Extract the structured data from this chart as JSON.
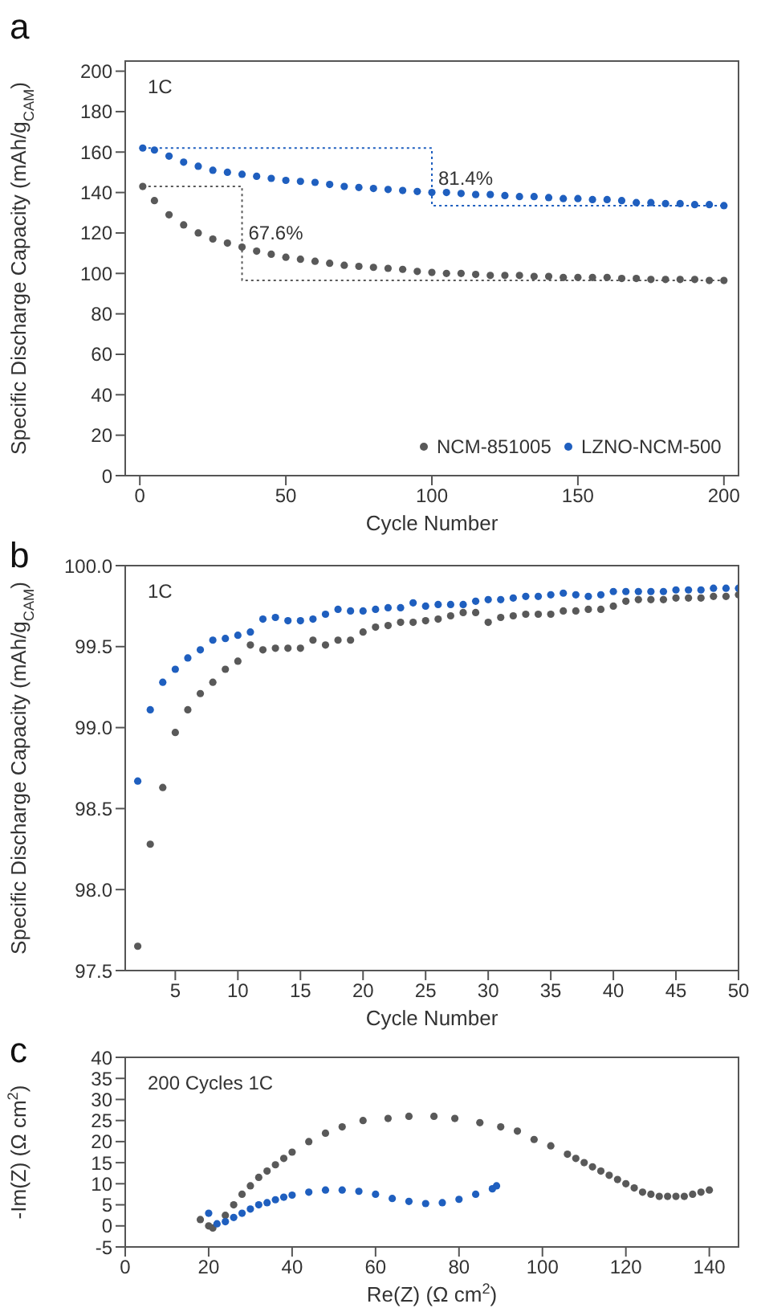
{
  "chart_data": [
    {
      "type": "scatter",
      "title": "a",
      "xlabel": "Cycle Number",
      "ylabel": "Specific Discharge Capacity (mAh/g$_{CAM}$)",
      "xlim": [
        -5,
        205
      ],
      "ylim": [
        0,
        205
      ],
      "xticks": [
        0,
        50,
        100,
        150,
        200
      ],
      "yticks": [
        0,
        20,
        40,
        60,
        80,
        100,
        120,
        140,
        160,
        180,
        200
      ],
      "marker": "circle",
      "legend": "bottom right",
      "annotations": [
        "1C",
        {
          "text": "67.6%",
          "x": 35,
          "y": 120
        },
        {
          "text": "81.4%",
          "x": 100,
          "y": 147
        }
      ],
      "series": [
        {
          "name": "NCM-851005",
          "color": "#595959",
          "x": [
            1,
            5,
            10,
            15,
            20,
            25,
            30,
            35,
            40,
            45,
            50,
            55,
            60,
            65,
            70,
            75,
            80,
            85,
            90,
            95,
            100,
            105,
            110,
            115,
            120,
            125,
            130,
            135,
            140,
            145,
            150,
            155,
            160,
            165,
            170,
            175,
            180,
            185,
            190,
            195,
            200
          ],
          "values": [
            143,
            136,
            129,
            124,
            120,
            117,
            115,
            113,
            111,
            109.5,
            108,
            107,
            106,
            105,
            104,
            103.5,
            103,
            102.5,
            102,
            101,
            100.5,
            100,
            100,
            99.5,
            99,
            99,
            99,
            98.5,
            98.5,
            98,
            98,
            98,
            98,
            97.5,
            97.5,
            97,
            97,
            97,
            97,
            96.5,
            96.5
          ]
        },
        {
          "name": "LZNO-NCM-500",
          "color": "#1f5fbf",
          "x": [
            1,
            5,
            10,
            15,
            20,
            25,
            30,
            35,
            40,
            45,
            50,
            55,
            60,
            65,
            70,
            75,
            80,
            85,
            90,
            95,
            100,
            105,
            110,
            115,
            120,
            125,
            130,
            135,
            140,
            145,
            150,
            155,
            160,
            165,
            170,
            175,
            180,
            185,
            190,
            195,
            200
          ],
          "values": [
            162,
            161,
            158,
            155,
            153,
            151,
            150,
            149,
            148,
            147,
            146,
            145.5,
            145,
            144,
            143,
            142.5,
            142,
            141.5,
            141,
            140.5,
            140,
            140,
            139.5,
            139,
            139,
            138.5,
            138,
            138,
            137.5,
            137,
            137,
            136.5,
            136.5,
            136,
            135,
            135,
            134.5,
            134.5,
            134,
            134,
            133.5
          ]
        },
        {
          "type": "line",
          "color": "#595959",
          "line_style": "dotted",
          "marker": "none",
          "x": [
            1,
            35,
            35,
            200
          ],
          "values": [
            143,
            143,
            96.5,
            96.5
          ]
        },
        {
          "type": "line",
          "color": "#1f5fbf",
          "line_style": "dotted",
          "marker": "none",
          "x": [
            1,
            100,
            100,
            200
          ],
          "values": [
            162,
            162,
            133.5,
            133.5
          ]
        }
      ]
    },
    {
      "type": "scatter",
      "title": "b",
      "xlabel": "Cycle Number",
      "ylabel": "Specific Discharge Capacity (mAh/g$_{CAM}$)",
      "xlim": [
        1,
        50
      ],
      "ylim": [
        97.5,
        100
      ],
      "xticks": [
        5,
        10,
        15,
        20,
        25,
        30,
        35,
        40,
        45,
        50
      ],
      "yticks": [
        97.5,
        {
          "value": 98,
          "label": "98.0"
        },
        98.5,
        {
          "value": 99,
          "label": "99.0"
        },
        99.5,
        {
          "value": 100,
          "label": "100.0"
        }
      ],
      "marker": "circle",
      "annotations": [
        "1C"
      ],
      "series": [
        {
          "color": "#595959",
          "x": [
            2,
            3,
            4,
            5,
            6,
            7,
            8,
            9,
            10,
            11,
            12,
            13,
            14,
            15,
            16,
            17,
            18,
            19,
            20,
            21,
            22,
            23,
            24,
            25,
            26,
            27,
            28,
            29,
            30,
            31,
            32,
            33,
            34,
            35,
            36,
            37,
            38,
            39,
            40,
            41,
            42,
            43,
            44,
            45,
            46,
            47,
            48,
            49,
            50
          ],
          "values": [
            97.65,
            98.28,
            98.63,
            98.97,
            99.11,
            99.21,
            99.28,
            99.36,
            99.41,
            99.51,
            99.48,
            99.49,
            99.49,
            99.49,
            99.54,
            99.51,
            99.54,
            99.54,
            99.59,
            99.62,
            99.63,
            99.65,
            99.65,
            99.66,
            99.67,
            99.69,
            99.71,
            99.71,
            99.65,
            99.68,
            99.69,
            99.7,
            99.7,
            99.7,
            99.72,
            99.72,
            99.73,
            99.73,
            99.75,
            99.78,
            99.79,
            99.79,
            99.79,
            99.8,
            99.8,
            99.8,
            99.81,
            99.81,
            99.82
          ]
        },
        {
          "color": "#1f5fbf",
          "x": [
            2,
            3,
            4,
            5,
            6,
            7,
            8,
            9,
            10,
            11,
            12,
            13,
            14,
            15,
            16,
            17,
            18,
            19,
            20,
            21,
            22,
            23,
            24,
            25,
            26,
            27,
            28,
            29,
            30,
            31,
            32,
            33,
            34,
            35,
            36,
            37,
            38,
            39,
            40,
            41,
            42,
            43,
            44,
            45,
            46,
            47,
            48,
            49,
            50
          ],
          "values": [
            98.67,
            99.11,
            99.28,
            99.36,
            99.43,
            99.48,
            99.54,
            99.55,
            99.57,
            99.59,
            99.67,
            99.68,
            99.66,
            99.66,
            99.67,
            99.7,
            99.73,
            99.72,
            99.72,
            99.73,
            99.74,
            99.74,
            99.77,
            99.75,
            99.76,
            99.76,
            99.76,
            99.78,
            99.79,
            99.79,
            99.8,
            99.81,
            99.81,
            99.82,
            99.83,
            99.82,
            99.81,
            99.82,
            99.84,
            99.84,
            99.84,
            99.84,
            99.84,
            99.85,
            99.85,
            99.85,
            99.86,
            99.86,
            99.86
          ]
        }
      ]
    },
    {
      "type": "scatter",
      "title": "c",
      "xlabel": "Re(Z) (Ω cm$^{2}$)",
      "ylabel": "-Im(Z) (Ω cm$^{2}$)",
      "xlim": [
        0,
        147
      ],
      "ylim": [
        -5,
        40
      ],
      "xticks": [
        0,
        20,
        40,
        60,
        80,
        100,
        120,
        140
      ],
      "yticks": [
        -5,
        0,
        5,
        10,
        15,
        20,
        25,
        30,
        35,
        40
      ],
      "marker": "circle",
      "annotations": [
        "200 Cycles 1C"
      ],
      "series": [
        {
          "color": "#595959",
          "x": [
            18,
            20,
            21,
            24,
            26,
            28,
            30,
            32,
            34,
            36,
            38,
            40,
            44,
            48,
            52,
            57,
            63,
            68,
            74,
            79,
            85,
            90,
            94,
            98,
            102,
            106,
            108,
            110,
            112,
            114,
            116,
            118,
            120,
            122,
            124,
            126,
            128,
            130,
            132,
            134,
            136,
            138,
            140
          ],
          "values": [
            1.5,
            0,
            -0.5,
            2.5,
            5,
            7.5,
            9.5,
            11.5,
            13,
            14.5,
            16,
            17.5,
            20,
            22,
            23.5,
            25,
            25.5,
            26,
            26,
            25.5,
            24.5,
            23.5,
            22.5,
            20.5,
            19,
            17,
            16,
            15,
            14,
            13,
            12,
            11,
            10,
            9,
            8,
            7.5,
            7,
            7,
            7,
            7,
            7.5,
            8,
            8.5
          ]
        },
        {
          "color": "#1f5fbf",
          "x": [
            20,
            22,
            24,
            26,
            28,
            30,
            32,
            34,
            36,
            38,
            40,
            44,
            48,
            52,
            56,
            60,
            64,
            68,
            72,
            76,
            80,
            84,
            88,
            89
          ],
          "values": [
            3,
            0.5,
            1,
            2,
            3,
            4,
            5,
            5.5,
            6.2,
            6.8,
            7.3,
            8,
            8.5,
            8.5,
            8.2,
            7.5,
            6.5,
            5.8,
            5.3,
            5.5,
            6.3,
            7.5,
            8.8,
            9.5
          ]
        }
      ]
    }
  ]
}
